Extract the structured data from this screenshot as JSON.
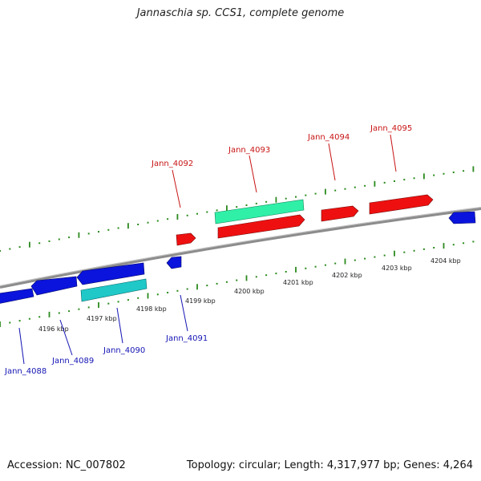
{
  "title": "Jannaschia sp. CCS1, complete genome",
  "footer": {
    "accession": "Accession: NC_007802",
    "summary": "Topology: circular; Length: 4,317,977 bp; Genes: 4,264"
  },
  "colors": {
    "backbone": "#8c8c8c",
    "tick": "#2b8a1e",
    "gene_blue": "#0a14dc",
    "gene_red": "#ee1010",
    "gene_cyan": "#20c8c8",
    "gene_green": "#30f0a8",
    "label_blue": "#1414b4",
    "label_red": "#c81414"
  },
  "scale_labels": [
    "4196 kbp",
    "4197 kbp",
    "4198 kbp",
    "4199 kbp",
    "4200 kbp",
    "4201 kbp",
    "4202 kbp",
    "4203 kbp",
    "4204 kbp"
  ],
  "gene_labels": {
    "jann_4088": "Jann_4088",
    "jann_4089": "Jann_4089",
    "jann_4090": "Jann_4090",
    "jann_4091": "Jann_4091",
    "jann_4092": "Jann_4092",
    "jann_4093": "Jann_4093",
    "jann_4094": "Jann_4094",
    "jann_4095": "Jann_4095"
  }
}
